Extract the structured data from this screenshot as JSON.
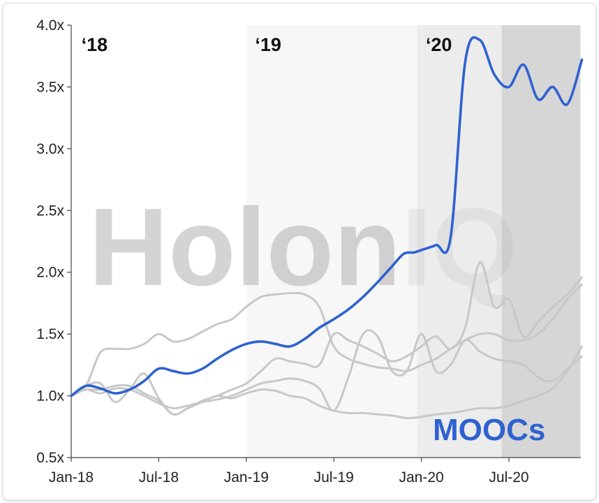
{
  "chart_data": {
    "type": "line",
    "title": "",
    "xlabel": "",
    "ylabel": "",
    "x_ticks": [
      "Jan-18",
      "Jul-18",
      "Jan-19",
      "Jul-19",
      "Jan-20",
      "Jul-20"
    ],
    "y_ticks": [
      "0.5x",
      "1.0x",
      "1.5x",
      "2.0x",
      "2.5x",
      "3.0x",
      "3.5x",
      "4.0x"
    ],
    "ylim": [
      0.5,
      4.0
    ],
    "grid": false,
    "period_labels": [
      "‘18",
      "‘19",
      "‘20"
    ],
    "watermark": "HolonIQ",
    "highlight_label": "MOOCs",
    "colors": {
      "highlight": "#2f62d0",
      "others": "#c8c8c8",
      "band_2018": "#ffffff",
      "band_2019": "#f7f7f7",
      "band_2020": "#ececec",
      "band_2020b": "#d6d6d6"
    },
    "series": [
      {
        "name": "MOOCs",
        "highlight": true,
        "x": [
          0,
          1,
          2,
          3,
          4,
          5,
          6,
          7,
          8,
          9,
          10,
          11,
          12,
          13,
          14,
          15,
          16,
          17,
          18,
          19,
          20,
          21,
          22,
          22.8,
          23.5,
          24,
          25,
          26,
          27,
          28,
          29,
          30,
          31,
          32,
          33,
          34,
          35
        ],
        "values": [
          1.0,
          1.08,
          1.06,
          1.02,
          1.05,
          1.12,
          1.22,
          1.2,
          1.18,
          1.22,
          1.3,
          1.37,
          1.42,
          1.44,
          1.42,
          1.4,
          1.46,
          1.55,
          1.62,
          1.7,
          1.8,
          1.92,
          2.05,
          2.15,
          2.16,
          2.18,
          2.22,
          2.28,
          3.7,
          3.88,
          3.6,
          3.5,
          3.68,
          3.4,
          3.5,
          3.36,
          3.72
        ]
      },
      {
        "name": "",
        "x": [
          0,
          1,
          2,
          3,
          4,
          5,
          6,
          7,
          8,
          9,
          10,
          11,
          12,
          13,
          14,
          15,
          16,
          17,
          18,
          19,
          20,
          21,
          22,
          23,
          24,
          25,
          26,
          27,
          28,
          29,
          30,
          31,
          32,
          33,
          34,
          35
        ],
        "values": [
          1.0,
          1.08,
          1.35,
          1.38,
          1.38,
          1.42,
          1.5,
          1.44,
          1.46,
          1.52,
          1.58,
          1.62,
          1.72,
          1.8,
          1.82,
          1.83,
          1.82,
          1.72,
          1.4,
          1.3,
          1.26,
          1.23,
          1.22,
          1.2,
          1.25,
          1.3,
          1.38,
          1.45,
          1.5,
          1.5,
          1.45,
          1.45,
          1.5,
          1.62,
          1.78,
          1.9
        ]
      },
      {
        "name": "",
        "x": [
          0,
          1,
          2,
          3,
          4,
          5,
          6,
          7,
          8,
          9,
          10,
          11,
          12,
          13,
          14,
          15,
          16,
          17,
          18,
          19,
          20,
          21,
          22,
          23,
          24,
          25,
          26,
          27,
          28,
          29,
          30,
          31,
          32,
          33,
          34,
          35
        ],
        "values": [
          1.0,
          1.08,
          1.1,
          0.95,
          1.05,
          1.18,
          0.98,
          0.85,
          0.9,
          0.96,
          1.0,
          1.05,
          1.1,
          1.2,
          1.3,
          1.28,
          1.26,
          1.25,
          1.5,
          1.45,
          1.4,
          1.34,
          1.28,
          1.32,
          1.4,
          1.48,
          1.38,
          1.55,
          2.08,
          1.72,
          1.78,
          1.48,
          1.6,
          1.72,
          1.82,
          1.96
        ]
      },
      {
        "name": "",
        "x": [
          0,
          1,
          2,
          3,
          4,
          5,
          6,
          7,
          8,
          9,
          10,
          11,
          12,
          13,
          14,
          15,
          16,
          17,
          18,
          19,
          20,
          21,
          22,
          23,
          24,
          25,
          26,
          27,
          28,
          29,
          30,
          31,
          32,
          33,
          34,
          35
        ],
        "values": [
          1.0,
          1.05,
          1.02,
          1.06,
          1.05,
          1.0,
          0.94,
          0.9,
          0.92,
          0.95,
          0.97,
          1.0,
          1.05,
          1.1,
          1.12,
          1.14,
          1.12,
          1.06,
          0.88,
          1.15,
          1.5,
          1.48,
          1.2,
          1.2,
          1.5,
          1.2,
          1.25,
          1.45,
          1.36,
          1.3,
          1.28,
          1.25,
          1.15,
          1.12,
          1.22,
          1.32
        ]
      },
      {
        "name": "",
        "x": [
          0,
          1,
          2,
          3,
          4,
          5,
          6,
          7,
          8,
          9,
          10,
          11,
          12,
          13,
          14,
          15,
          16,
          17,
          18,
          19,
          20,
          21,
          22,
          23,
          24,
          25,
          26,
          27,
          28,
          29,
          30,
          31,
          32,
          33,
          34,
          35
        ],
        "values": [
          1.0,
          1.05,
          1.05,
          1.08,
          1.08,
          1.02,
          0.96,
          0.85,
          0.9,
          0.95,
          1.0,
          0.98,
          1.02,
          1.05,
          1.04,
          1.0,
          0.98,
          0.92,
          0.88,
          0.86,
          0.86,
          0.85,
          0.84,
          0.82,
          0.83,
          0.85,
          0.86,
          0.88,
          0.9,
          0.9,
          0.92,
          0.96,
          1.0,
          1.06,
          1.2,
          1.4
        ]
      }
    ]
  }
}
